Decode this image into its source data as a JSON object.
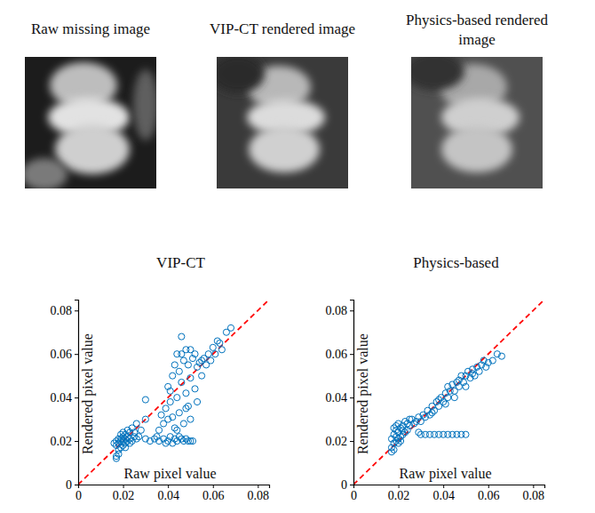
{
  "images": [
    {
      "title": "Raw missing image"
    },
    {
      "title": "VIP-CT rendered image"
    },
    {
      "title": "Physics-based rendered image"
    }
  ],
  "chart_data": [
    {
      "type": "scatter",
      "title": "VIP-CT",
      "x_label": "Raw pixel value",
      "y_label": "Rendered pixel value",
      "color": "#0072bd",
      "marker": "circle",
      "grid": false,
      "xlim": [
        0,
        0.085
      ],
      "ylim": [
        0,
        0.085
      ],
      "xticks": [
        0,
        0.02,
        0.04,
        0.06,
        0.08
      ],
      "yticks": [
        0,
        0.02,
        0.04,
        0.06,
        0.08
      ],
      "x": [
        0.017,
        0.017,
        0.018,
        0.018,
        0.017,
        0.018,
        0.019,
        0.019,
        0.02,
        0.02,
        0.021,
        0.021,
        0.022,
        0.022,
        0.023,
        0.023,
        0.024,
        0.024,
        0.025,
        0.026,
        0.019,
        0.02,
        0.021,
        0.022,
        0.018,
        0.019,
        0.02,
        0.017,
        0.016,
        0.021,
        0.023,
        0.025,
        0.026,
        0.027,
        0.028,
        0.03,
        0.03,
        0.032,
        0.034,
        0.036,
        0.038,
        0.04,
        0.041,
        0.043,
        0.044,
        0.046,
        0.047,
        0.049,
        0.05,
        0.035,
        0.039,
        0.042,
        0.045,
        0.048,
        0.051,
        0.036,
        0.037,
        0.038,
        0.039,
        0.04,
        0.04,
        0.041,
        0.042,
        0.042,
        0.043,
        0.043,
        0.044,
        0.044,
        0.045,
        0.045,
        0.046,
        0.046,
        0.047,
        0.047,
        0.048,
        0.048,
        0.049,
        0.049,
        0.05,
        0.05,
        0.051,
        0.052,
        0.052,
        0.053,
        0.053,
        0.054,
        0.055,
        0.056,
        0.057,
        0.058,
        0.06,
        0.061,
        0.062,
        0.063,
        0.064,
        0.066,
        0.068,
        0.046,
        0.05,
        0.055,
        0.059,
        0.041,
        0.044,
        0.048,
        0.03
      ],
      "values": [
        0.012,
        0.013,
        0.014,
        0.016,
        0.018,
        0.019,
        0.02,
        0.021,
        0.02,
        0.022,
        0.019,
        0.021,
        0.02,
        0.022,
        0.021,
        0.024,
        0.02,
        0.026,
        0.022,
        0.028,
        0.017,
        0.018,
        0.023,
        0.025,
        0.021,
        0.023,
        0.024,
        0.02,
        0.019,
        0.017,
        0.019,
        0.024,
        0.021,
        0.022,
        0.025,
        0.039,
        0.021,
        0.02,
        0.021,
        0.02,
        0.021,
        0.02,
        0.022,
        0.021,
        0.02,
        0.021,
        0.02,
        0.02,
        0.02,
        0.022,
        0.019,
        0.019,
        0.022,
        0.021,
        0.02,
        0.025,
        0.032,
        0.028,
        0.035,
        0.03,
        0.045,
        0.038,
        0.031,
        0.05,
        0.026,
        0.055,
        0.04,
        0.06,
        0.033,
        0.052,
        0.047,
        0.068,
        0.028,
        0.057,
        0.042,
        0.062,
        0.036,
        0.055,
        0.03,
        0.049,
        0.058,
        0.044,
        0.06,
        0.038,
        0.054,
        0.056,
        0.05,
        0.058,
        0.055,
        0.06,
        0.063,
        0.06,
        0.066,
        0.065,
        0.062,
        0.07,
        0.072,
        0.06,
        0.062,
        0.057,
        0.057,
        0.043,
        0.025,
        0.035,
        0.03
      ]
    },
    {
      "type": "scatter",
      "title": "Physics-based",
      "x_label": "Raw pixel value",
      "y_label": "Rendered pixel value",
      "color": "#0072bd",
      "marker": "circle",
      "grid": false,
      "xlim": [
        0,
        0.085
      ],
      "ylim": [
        0,
        0.085
      ],
      "xticks": [
        0,
        0.02,
        0.04,
        0.06,
        0.08
      ],
      "yticks": [
        0,
        0.02,
        0.04,
        0.06,
        0.08
      ],
      "x": [
        0.017,
        0.017,
        0.018,
        0.018,
        0.019,
        0.019,
        0.02,
        0.02,
        0.021,
        0.021,
        0.022,
        0.022,
        0.023,
        0.023,
        0.024,
        0.024,
        0.025,
        0.026,
        0.027,
        0.018,
        0.019,
        0.02,
        0.017,
        0.018,
        0.019,
        0.021,
        0.022,
        0.025,
        0.028,
        0.02,
        0.03,
        0.032,
        0.034,
        0.036,
        0.038,
        0.04,
        0.042,
        0.044,
        0.046,
        0.048,
        0.05,
        0.029,
        0.029,
        0.03,
        0.031,
        0.032,
        0.033,
        0.034,
        0.035,
        0.036,
        0.037,
        0.038,
        0.039,
        0.04,
        0.041,
        0.042,
        0.042,
        0.043,
        0.044,
        0.045,
        0.046,
        0.047,
        0.048,
        0.049,
        0.05,
        0.051,
        0.052,
        0.053,
        0.054,
        0.055,
        0.056,
        0.057,
        0.058,
        0.059,
        0.06,
        0.062,
        0.064,
        0.066,
        0.045,
        0.047,
        0.05,
        0.053,
        0.038,
        0.035,
        0.041
      ],
      "values": [
        0.015,
        0.017,
        0.016,
        0.019,
        0.02,
        0.022,
        0.021,
        0.024,
        0.022,
        0.026,
        0.023,
        0.027,
        0.024,
        0.029,
        0.025,
        0.028,
        0.027,
        0.03,
        0.028,
        0.023,
        0.025,
        0.019,
        0.021,
        0.026,
        0.027,
        0.02,
        0.025,
        0.03,
        0.029,
        0.028,
        0.023,
        0.023,
        0.023,
        0.023,
        0.023,
        0.023,
        0.023,
        0.023,
        0.023,
        0.023,
        0.023,
        0.024,
        0.031,
        0.029,
        0.032,
        0.031,
        0.034,
        0.032,
        0.036,
        0.034,
        0.038,
        0.036,
        0.04,
        0.038,
        0.042,
        0.04,
        0.045,
        0.043,
        0.046,
        0.043,
        0.047,
        0.045,
        0.05,
        0.047,
        0.05,
        0.052,
        0.049,
        0.053,
        0.05,
        0.054,
        0.052,
        0.055,
        0.057,
        0.054,
        0.056,
        0.057,
        0.06,
        0.059,
        0.04,
        0.048,
        0.045,
        0.051,
        0.039,
        0.033,
        0.037
      ]
    }
  ]
}
